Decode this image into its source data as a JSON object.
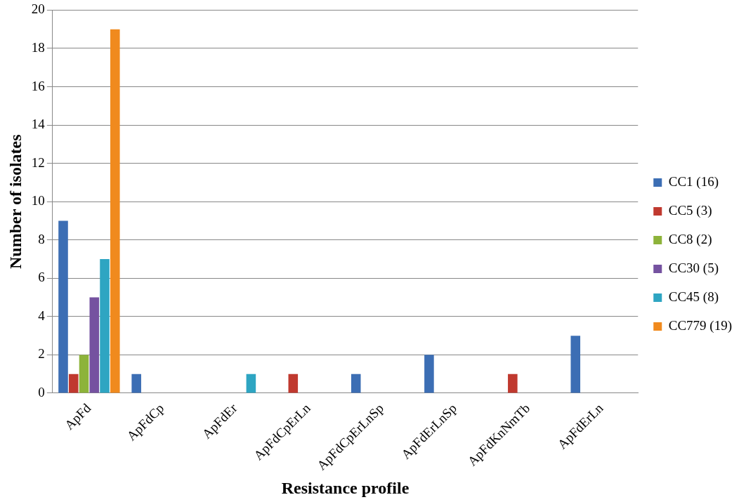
{
  "chart_data": {
    "type": "bar",
    "xlabel": "Resistance profile",
    "ylabel": "Number of isolates",
    "categories": [
      "ApFd",
      "ApFdCp",
      "ApFdEr",
      "ApFdCpErLn",
      "ApFdCpErLnSp",
      "ApFdErLnSp",
      "ApFdKnNmTb",
      "ApFdErLn"
    ],
    "series": [
      {
        "name": "CC1 (16)",
        "color": "#3c6eb4",
        "values": [
          9,
          1,
          null,
          null,
          1,
          2,
          null,
          3
        ]
      },
      {
        "name": "CC5 (3)",
        "color": "#c0392f",
        "values": [
          1,
          null,
          null,
          1,
          null,
          null,
          1,
          null
        ]
      },
      {
        "name": "CC8 (2)",
        "color": "#8db33a",
        "values": [
          2,
          null,
          null,
          null,
          null,
          null,
          null,
          null
        ]
      },
      {
        "name": "CC30 (5)",
        "color": "#7552a0",
        "values": [
          5,
          null,
          null,
          null,
          null,
          null,
          null,
          null
        ]
      },
      {
        "name": "CC45 (8)",
        "color": "#2ea5c2",
        "values": [
          7,
          null,
          1,
          null,
          null,
          null,
          null,
          null
        ]
      },
      {
        "name": "CC779 (19)",
        "color": "#f08a1e",
        "values": [
          19,
          null,
          null,
          null,
          null,
          null,
          null,
          null
        ]
      }
    ],
    "ylim": [
      0,
      20
    ],
    "yticks": [
      0,
      2,
      4,
      6,
      8,
      10,
      12,
      14,
      16,
      18,
      20
    ],
    "grid": "y",
    "legend": "right"
  }
}
